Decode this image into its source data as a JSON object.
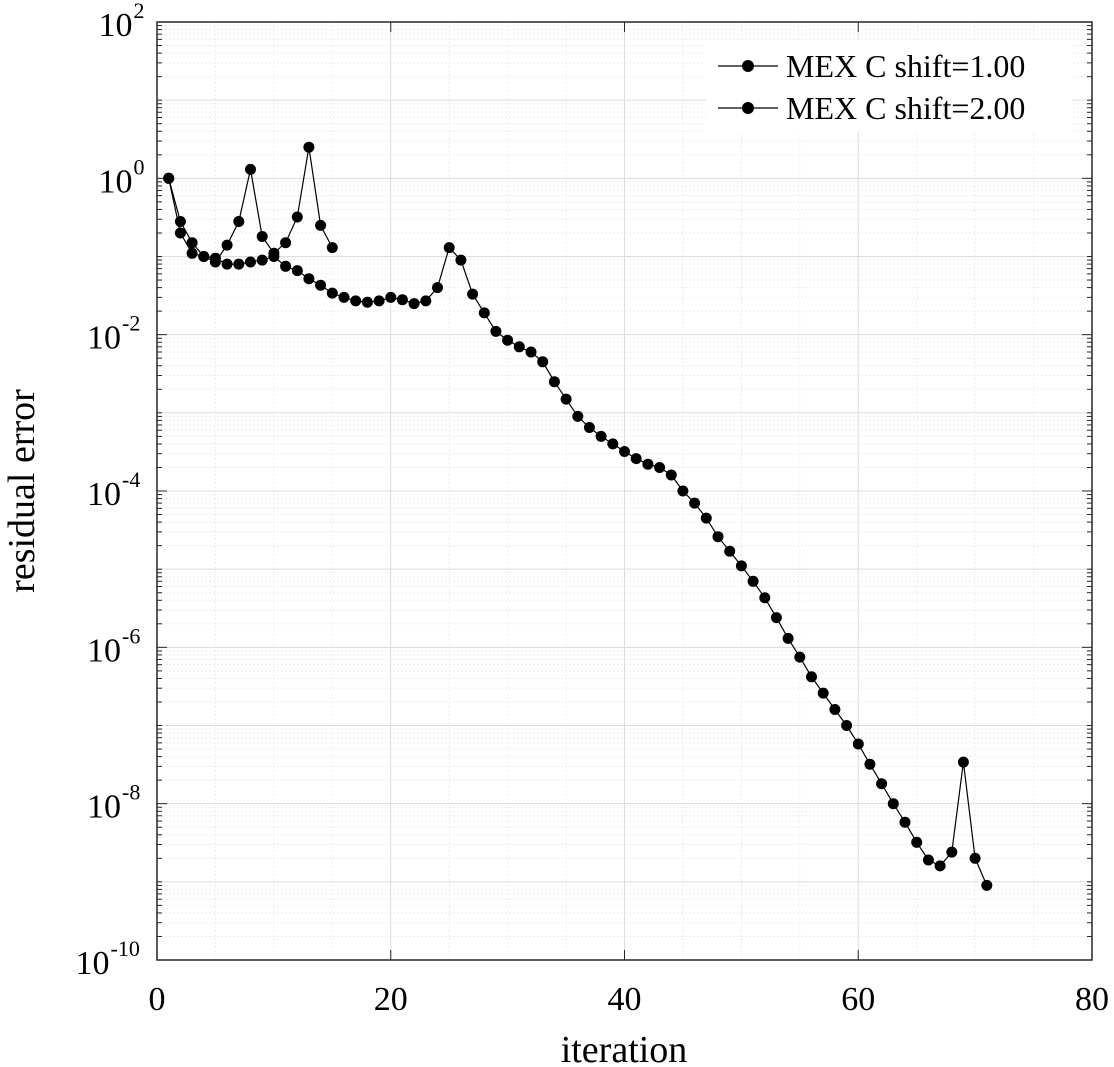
{
  "chart_data": {
    "type": "line",
    "title": "",
    "xlabel": "iteration",
    "ylabel": "residual error",
    "xlim": [
      0,
      80
    ],
    "ylim": [
      1e-10,
      100
    ],
    "yscale": "log",
    "grid": true,
    "minor_grid": true,
    "legend_position": "top-right",
    "x_ticks": [
      {
        "value": 0,
        "label": "0"
      },
      {
        "value": 20,
        "label": "20"
      },
      {
        "value": 40,
        "label": "40"
      },
      {
        "value": 60,
        "label": "60"
      },
      {
        "value": 80,
        "label": "80"
      }
    ],
    "y_ticks": [
      {
        "value": 100,
        "base": "10",
        "exp": "2"
      },
      {
        "value": 1,
        "base": "10",
        "exp": "0"
      },
      {
        "value": 0.01,
        "base": "10",
        "exp": "-2"
      },
      {
        "value": 0.0001,
        "base": "10",
        "exp": "-4"
      },
      {
        "value": 1e-06,
        "base": "10",
        "exp": "-6"
      },
      {
        "value": 1e-08,
        "base": "10",
        "exp": "-8"
      },
      {
        "value": 1e-10,
        "base": "10",
        "exp": "-10"
      }
    ],
    "series": [
      {
        "name": "MEX C shift=1.00",
        "color": "#000000",
        "marker": "circle",
        "x": [
          1,
          2,
          3,
          4,
          5,
          6,
          7,
          8,
          9,
          10,
          11,
          12,
          13,
          14,
          15
        ],
        "y": [
          1.0,
          0.28,
          0.15,
          0.1,
          0.085,
          0.14,
          0.28,
          1.3,
          0.18,
          0.11,
          0.15,
          0.32,
          2.5,
          0.25,
          0.13
        ]
      },
      {
        "name": "MEX C shift=2.00",
        "color": "#000000",
        "marker": "circle",
        "x": [
          1,
          2,
          3,
          4,
          5,
          6,
          7,
          8,
          9,
          10,
          11,
          12,
          13,
          14,
          15,
          16,
          17,
          18,
          19,
          20,
          21,
          22,
          23,
          24,
          25,
          26,
          27,
          28,
          29,
          30,
          31,
          32,
          33,
          34,
          35,
          36,
          37,
          38,
          39,
          40,
          41,
          42,
          43,
          44,
          45,
          46,
          47,
          48,
          49,
          50,
          51,
          52,
          53,
          54,
          55,
          56,
          57,
          58,
          59,
          60,
          61,
          62,
          63,
          64,
          65,
          66,
          67,
          68,
          69,
          70,
          71
        ],
        "y": [
          1.0,
          0.2,
          0.11,
          0.1,
          0.095,
          0.08,
          0.08,
          0.085,
          0.09,
          0.1,
          0.075,
          0.066,
          0.052,
          0.043,
          0.034,
          0.03,
          0.027,
          0.026,
          0.027,
          0.03,
          0.028,
          0.025,
          0.027,
          0.04,
          0.13,
          0.09,
          0.033,
          0.019,
          0.011,
          0.0085,
          0.007,
          0.006,
          0.0045,
          0.0025,
          0.0015,
          0.0009,
          0.00065,
          0.0005,
          0.0004,
          0.00032,
          0.00026,
          0.00022,
          0.0002,
          0.00016,
          0.0001,
          7e-05,
          4.5e-05,
          2.6e-05,
          1.7e-05,
          1.1e-05,
          7e-06,
          4.3e-06,
          2.4e-06,
          1.3e-06,
          7.5e-07,
          4.2e-07,
          2.6e-07,
          1.6e-07,
          1e-07,
          5.8e-08,
          3.2e-08,
          1.8e-08,
          1e-08,
          5.8e-09,
          3.2e-09,
          1.9e-09,
          1.6e-09,
          2.4e-09,
          3.4e-08,
          2e-09,
          9e-10
        ]
      }
    ]
  }
}
